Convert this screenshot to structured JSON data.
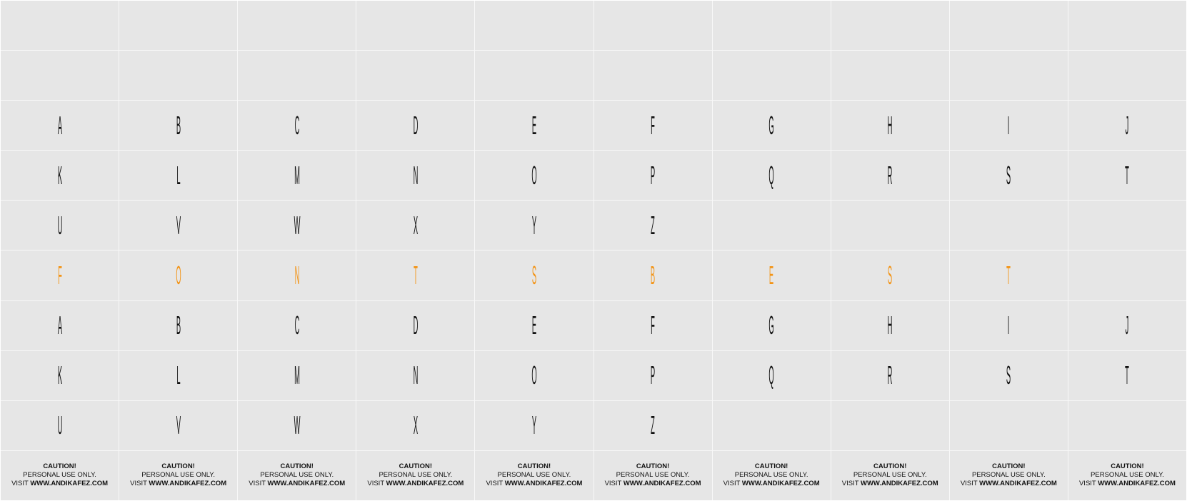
{
  "colors": {
    "background": "#e6e6e6",
    "gridline": "#f8f8f8",
    "glyph": "#111111",
    "accent": "#f39314"
  },
  "rows": [
    {
      "style": "black",
      "cells": [
        "",
        "",
        "",
        "",
        "",
        "",
        "",
        "",
        "",
        ""
      ]
    },
    {
      "style": "black",
      "cells": [
        "",
        "",
        "",
        "",
        "",
        "",
        "",
        "",
        "",
        ""
      ]
    },
    {
      "style": "black",
      "cells": [
        "A",
        "B",
        "C",
        "D",
        "E",
        "F",
        "G",
        "H",
        "I",
        "J"
      ]
    },
    {
      "style": "black",
      "cells": [
        "K",
        "L",
        "M",
        "N",
        "O",
        "P",
        "Q",
        "R",
        "S",
        "T"
      ]
    },
    {
      "style": "black",
      "cells": [
        "U",
        "V",
        "W",
        "X",
        "Y",
        "Z",
        "",
        "",
        "",
        ""
      ]
    },
    {
      "style": "orange",
      "cells": [
        "F",
        "O",
        "N",
        "T",
        "S",
        "B",
        "E",
        "S",
        "T",
        ""
      ]
    },
    {
      "style": "black",
      "cells": [
        "A",
        "B",
        "C",
        "D",
        "E",
        "F",
        "G",
        "H",
        "I",
        "J"
      ]
    },
    {
      "style": "black",
      "cells": [
        "K",
        "L",
        "M",
        "N",
        "O",
        "P",
        "Q",
        "R",
        "S",
        "T"
      ]
    },
    {
      "style": "black",
      "cells": [
        "U",
        "V",
        "W",
        "X",
        "Y",
        "Z",
        "",
        "",
        "",
        ""
      ]
    }
  ],
  "caution": {
    "line1": "CAUTION!",
    "line2": "PERSONAL USE ONLY.",
    "visit_prefix": "VISIT",
    "visit_url": "WWW.ANDIKAFEZ.COM"
  }
}
